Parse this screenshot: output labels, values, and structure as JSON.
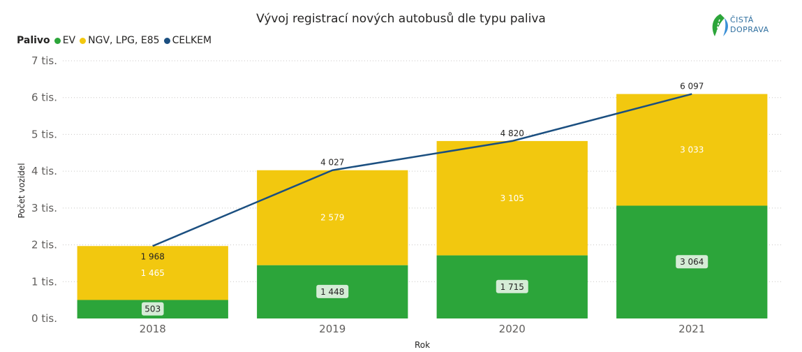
{
  "chart_data": {
    "type": "bar",
    "stacked": true,
    "title": "Vývoj registrací nových autobusů dle typu paliva",
    "xlabel": "Rok",
    "ylabel": "Počet vozidel",
    "categories": [
      "2018",
      "2019",
      "2020",
      "2021"
    ],
    "ylim": [
      0,
      7000
    ],
    "yticks": [
      0,
      1000,
      2000,
      3000,
      4000,
      5000,
      6000,
      7000
    ],
    "ytick_labels": [
      "0 tis.",
      "1 tis.",
      "2 tis.",
      "3 tis.",
      "4 tis.",
      "5 tis.",
      "6 tis.",
      "7 tis."
    ],
    "grid": true,
    "legend_position": "top-left",
    "legend_title": "Palivo",
    "series": [
      {
        "name": "EV",
        "type": "bar",
        "color": "#2ca53a",
        "values": [
          503,
          1448,
          1715,
          3064
        ],
        "labels": [
          "503",
          "1 448",
          "1 715",
          "3 064"
        ]
      },
      {
        "name": "NGV, LPG, E85",
        "type": "bar",
        "color": "#f2c80f",
        "values": [
          1465,
          2579,
          3105,
          3033
        ],
        "labels": [
          "1 465",
          "2 579",
          "3 105",
          "3 033"
        ]
      },
      {
        "name": "CELKEM",
        "type": "line",
        "color": "#1b4f80",
        "values": [
          1968,
          4027,
          4820,
          6097
        ],
        "labels": [
          "1 968",
          "4 027",
          "4 820",
          "6 097"
        ]
      }
    ]
  },
  "logo": {
    "line1": "ČISTÁ",
    "line2": "DOPRAVA"
  }
}
